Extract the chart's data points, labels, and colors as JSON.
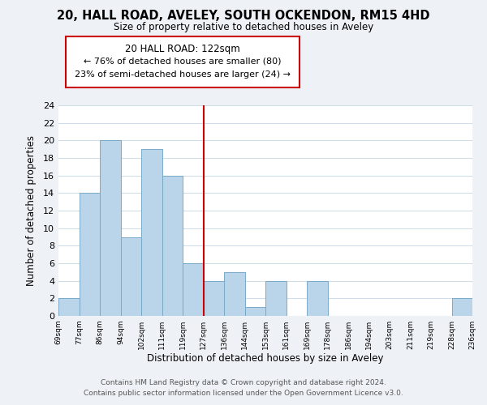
{
  "title1": "20, HALL ROAD, AVELEY, SOUTH OCKENDON, RM15 4HD",
  "title2": "Size of property relative to detached houses in Aveley",
  "xlabel": "Distribution of detached houses by size in Aveley",
  "ylabel": "Number of detached properties",
  "bins": [
    "69sqm",
    "77sqm",
    "86sqm",
    "94sqm",
    "102sqm",
    "111sqm",
    "119sqm",
    "127sqm",
    "136sqm",
    "144sqm",
    "153sqm",
    "161sqm",
    "169sqm",
    "178sqm",
    "186sqm",
    "194sqm",
    "203sqm",
    "211sqm",
    "219sqm",
    "228sqm",
    "236sqm"
  ],
  "counts": [
    2,
    14,
    20,
    9,
    19,
    16,
    6,
    4,
    5,
    1,
    4,
    0,
    4,
    0,
    0,
    0,
    0,
    0,
    0,
    2
  ],
  "bar_color": "#bad4ea",
  "bar_edge_color": "#7aaac8",
  "vline_x": 6.5,
  "vline_color": "#cc0000",
  "annotation_box_edge": "#cc0000",
  "annotation_box_face": "#ffffff",
  "annotation_title": "20 HALL ROAD: 122sqm",
  "annotation_line1": "← 76% of detached houses are smaller (80)",
  "annotation_line2": "23% of semi-detached houses are larger (24) →",
  "ylim": [
    0,
    24
  ],
  "yticks": [
    0,
    2,
    4,
    6,
    8,
    10,
    12,
    14,
    16,
    18,
    20,
    22,
    24
  ],
  "footer1": "Contains HM Land Registry data © Crown copyright and database right 2024.",
  "footer2": "Contains public sector information licensed under the Open Government Licence v3.0.",
  "bg_color": "#eef2f7",
  "plot_bg": "#ffffff",
  "grid_color": "#d0dce8"
}
